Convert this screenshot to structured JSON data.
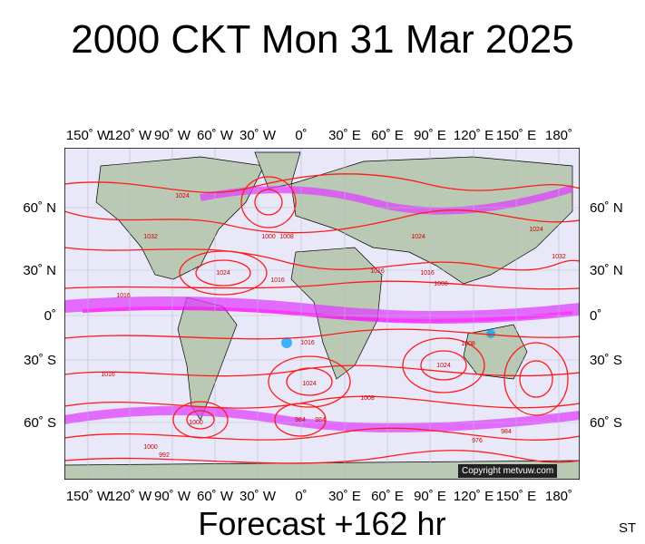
{
  "title": "2000 CKT Mon 31 Mar 2025",
  "forecast_label": "Forecast +162 hr",
  "corner_label": "ST",
  "copyright": "Copyright metvuw.com",
  "lon_labels": [
    "150˚ W",
    "120˚ W",
    "90˚ W",
    "60˚ W",
    "30˚ W",
    "0˚",
    "30˚ E",
    "60˚ E",
    "90˚ E",
    "120˚ E",
    "150˚ E",
    "180˚"
  ],
  "lat_labels": [
    "60˚ N",
    "30˚ N",
    "0˚",
    "30˚ S",
    "60˚ S"
  ],
  "isobar_labels": [
    "1024",
    "1032",
    "1016",
    "1000",
    "1024",
    "1016",
    "1008",
    "1016",
    "1024",
    "1032",
    "1024",
    "1016",
    "1008",
    "1016",
    "1024",
    "1016",
    "1024",
    "1008",
    "1000",
    "984",
    "1000",
    "992",
    "984",
    "976",
    "984",
    "1008"
  ],
  "colors": {
    "ocean": "#e8e8f8",
    "land": "#b9c9b3",
    "isobar": "#ff1a1a",
    "rain_light": "#e040ff",
    "rain_heavy": "#ff00ff",
    "rain_core": "#00a0ff",
    "coast": "#000000"
  }
}
